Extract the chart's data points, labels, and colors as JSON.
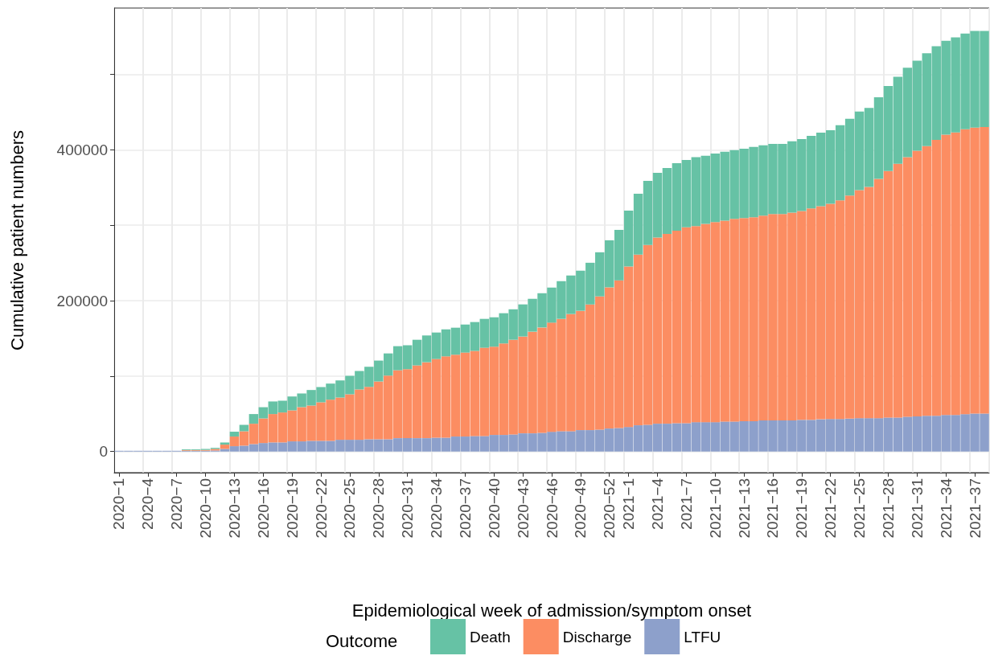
{
  "chart_data": {
    "type": "bar",
    "stacked": true,
    "xlabel": "Epidemiological week of admission/symptom onset",
    "ylabel": "Cumulative patient numbers",
    "legend_title": "Outcome",
    "legend": "bottom",
    "grid": true,
    "categories": [
      "2020−1",
      null,
      null,
      "2020−4",
      null,
      null,
      "2020−7",
      null,
      null,
      "2020−10",
      null,
      null,
      "2020−13",
      null,
      null,
      "2020−16",
      null,
      null,
      "2020−19",
      null,
      null,
      "2020−22",
      null,
      null,
      "2020−25",
      null,
      null,
      "2020−28",
      null,
      null,
      "2020−31",
      null,
      null,
      "2020−34",
      null,
      null,
      "2020−37",
      null,
      null,
      "2020−40",
      null,
      null,
      "2020−43",
      null,
      null,
      "2020−46",
      null,
      null,
      "2020−49",
      null,
      null,
      "2020−52",
      null,
      "2021−1",
      null,
      null,
      "2021−4",
      null,
      null,
      "2021−7",
      null,
      null,
      "2021−10",
      null,
      null,
      "2021−13",
      null,
      null,
      "2021−16",
      null,
      null,
      "2021−19",
      null,
      null,
      "2021−22",
      null,
      null,
      "2021−25",
      null,
      null,
      "2021−28",
      null,
      null,
      "2021−31",
      null,
      null,
      "2021−34",
      null,
      null,
      "2021−37",
      null
    ],
    "ylim": [
      -28000,
      588000
    ],
    "yticks": [
      0,
      {
        "value": 100000,
        "label": null
      },
      200000,
      {
        "value": 300000,
        "label": null
      },
      400000,
      {
        "value": 500000,
        "label": null
      }
    ],
    "series": [
      {
        "name": "LTFU",
        "color": "#8da0cb",
        "values": [
          1000,
          1000,
          1000,
          1000,
          1000,
          1000,
          1000,
          1000,
          1000,
          1000,
          1400,
          3500,
          7100,
          7800,
          9900,
          11300,
          12100,
          12100,
          13500,
          13500,
          14200,
          14200,
          14200,
          15600,
          15600,
          15600,
          16300,
          16300,
          16300,
          17700,
          17700,
          17700,
          17700,
          18400,
          18400,
          19900,
          19900,
          20600,
          20600,
          22000,
          22000,
          22700,
          24100,
          24100,
          24800,
          26200,
          27000,
          27000,
          28400,
          28400,
          29100,
          30500,
          31200,
          32600,
          34800,
          35500,
          36900,
          36900,
          37600,
          37600,
          39000,
          39000,
          39000,
          39800,
          39800,
          40200,
          40200,
          41300,
          41300,
          41300,
          41300,
          42000,
          42000,
          42800,
          43200,
          43200,
          43600,
          44300,
          44300,
          44300,
          45100,
          45100,
          46200,
          46600,
          47400,
          47400,
          48500,
          48500,
          49600,
          50400,
          50400
        ]
      },
      {
        "name": "Discharge",
        "color": "#fc8d62",
        "values": [
          0,
          0,
          0,
          0,
          0,
          0,
          0,
          1000,
          1000,
          1000,
          2100,
          5700,
          12800,
          19100,
          27000,
          32600,
          37600,
          39700,
          41100,
          45400,
          46800,
          51100,
          54600,
          56000,
          60300,
          66700,
          69500,
          76600,
          84400,
          90100,
          91500,
          96500,
          100700,
          104300,
          107800,
          108500,
          111300,
          112800,
          117000,
          117000,
          121300,
          125500,
          128400,
          134800,
          139700,
          144700,
          148900,
          155300,
          158200,
          166600,
          176600,
          187200,
          195700,
          212800,
          226200,
          238300,
          246800,
          251700,
          255300,
          259600,
          259900,
          262900,
          265200,
          266300,
          268600,
          269300,
          270400,
          271600,
          273500,
          273500,
          275400,
          276900,
          280300,
          282600,
          285200,
          289800,
          295800,
          302300,
          306500,
          317100,
          326900,
          336400,
          344000,
          352300,
          357500,
          365900,
          371600,
          374600,
          377700,
          379200,
          379900
        ]
      },
      {
        "name": "Death",
        "color": "#66c2a5",
        "values": [
          0,
          0,
          0,
          0,
          0,
          0,
          0,
          1000,
          1000,
          1400,
          1400,
          2800,
          6400,
          8500,
          12800,
          14900,
          16700,
          15600,
          18400,
          18100,
          20600,
          20200,
          21300,
          22700,
          24500,
          24500,
          26600,
          27700,
          29400,
          31900,
          31600,
          34000,
          35500,
          35100,
          35800,
          35800,
          37200,
          38300,
          38300,
          39000,
          40100,
          40400,
          42600,
          43600,
          45400,
          46500,
          50000,
          51100,
          53200,
          55300,
          58500,
          62400,
          67000,
          74100,
          80800,
          85100,
          85800,
          87200,
          89400,
          89400,
          91300,
          90200,
          90900,
          91300,
          91300,
          92000,
          93200,
          93200,
          93200,
          93200,
          94700,
          95500,
          96200,
          97400,
          97700,
          99600,
          101900,
          104200,
          104900,
          108300,
          112500,
          115500,
          118600,
          119300,
          123100,
          124200,
          124600,
          126100,
          126900,
          128000,
          127200
        ]
      }
    ]
  }
}
